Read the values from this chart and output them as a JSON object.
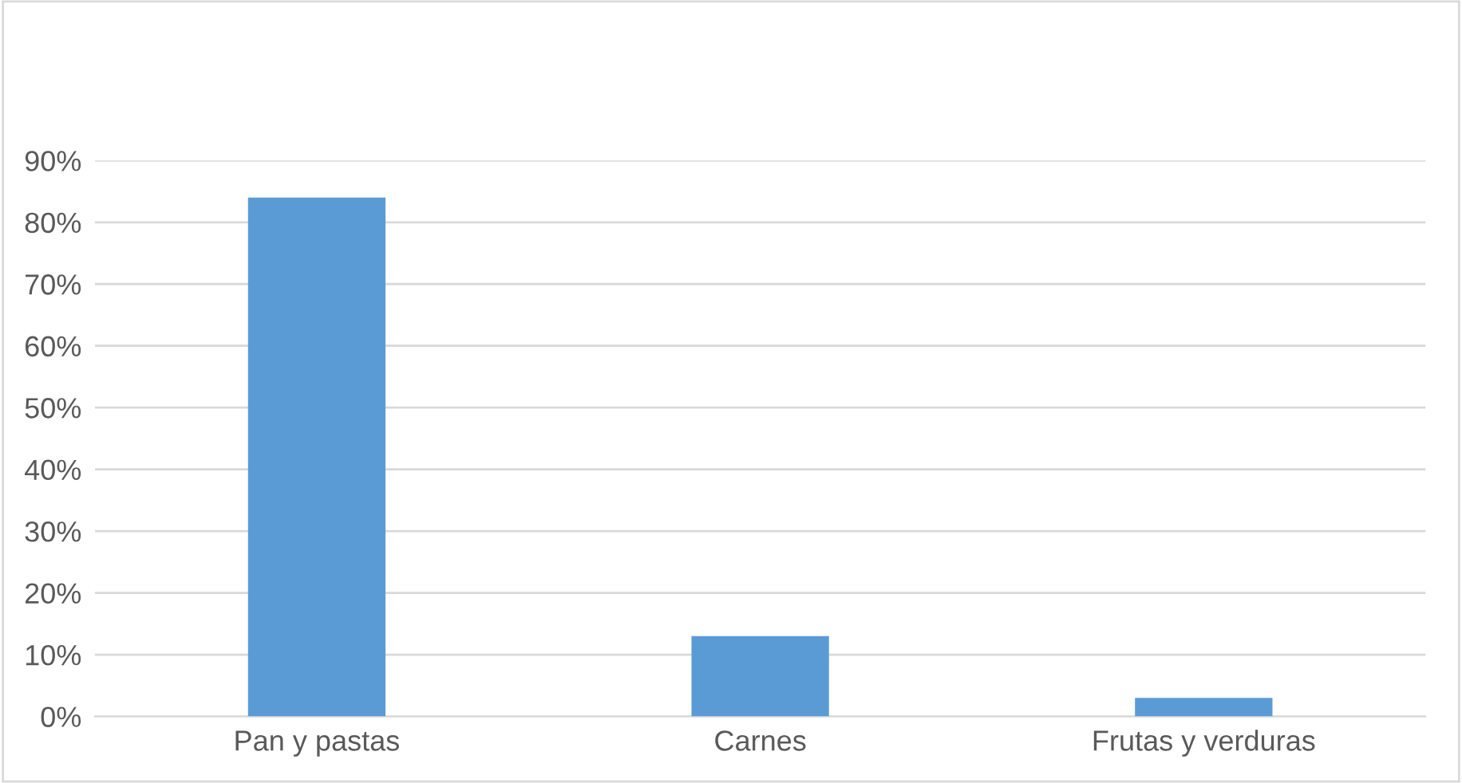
{
  "chart_data": {
    "type": "bar",
    "categories": [
      "Pan y pastas",
      "Carnes",
      "Frutas y verduras"
    ],
    "values": [
      84,
      13,
      3
    ],
    "color": "#5b9bd5",
    "ylim": [
      0,
      90
    ],
    "yticks": [
      {
        "value": 0,
        "label": "0%"
      },
      {
        "value": 10,
        "label": "10%"
      },
      {
        "value": 20,
        "label": "20%"
      },
      {
        "value": 30,
        "label": "30%"
      },
      {
        "value": 40,
        "label": "40%"
      },
      {
        "value": 50,
        "label": "50%"
      },
      {
        "value": 60,
        "label": "60%"
      },
      {
        "value": 70,
        "label": "70%"
      },
      {
        "value": 80,
        "label": "80%"
      },
      {
        "value": 90,
        "label": "90%"
      }
    ],
    "grid": "y"
  }
}
